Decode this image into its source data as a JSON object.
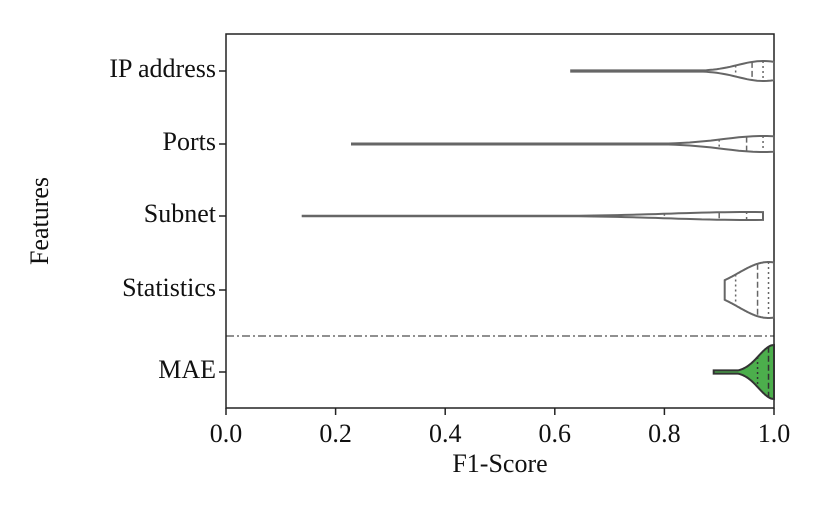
{
  "chart_data": {
    "type": "violin",
    "x_label": "F1-Score",
    "y_label": "Features",
    "categories": [
      "IP address",
      "Ports",
      "Subnet",
      "Statistics",
      "MAE"
    ],
    "series": [
      {
        "name": "IP address",
        "color": "#ffffff",
        "min": 0.63,
        "q1": 0.93,
        "median": 0.96,
        "q3": 0.98,
        "max": 1.0
      },
      {
        "name": "Ports",
        "color": "#ffffff",
        "min": 0.23,
        "q1": 0.9,
        "median": 0.95,
        "q3": 0.98,
        "max": 1.0
      },
      {
        "name": "Subnet",
        "color": "#ffffff",
        "min": 0.14,
        "q1": 0.8,
        "median": 0.9,
        "q3": 0.95,
        "max": 0.98
      },
      {
        "name": "Statistics",
        "color": "#ffffff",
        "min": 0.91,
        "q1": 0.93,
        "median": 0.97,
        "q3": 0.99,
        "max": 1.0
      },
      {
        "name": "MAE",
        "color": "#4cae4c",
        "min": 0.89,
        "q1": 0.97,
        "median": 0.99,
        "q3": 1.0,
        "max": 1.0
      }
    ],
    "xlim": [
      0,
      1
    ],
    "xticks": [
      {
        "value": 0,
        "label": "0.0"
      },
      0.2,
      0.4,
      0.6,
      0.8,
      {
        "value": 1,
        "label": "1.0"
      }
    ]
  }
}
